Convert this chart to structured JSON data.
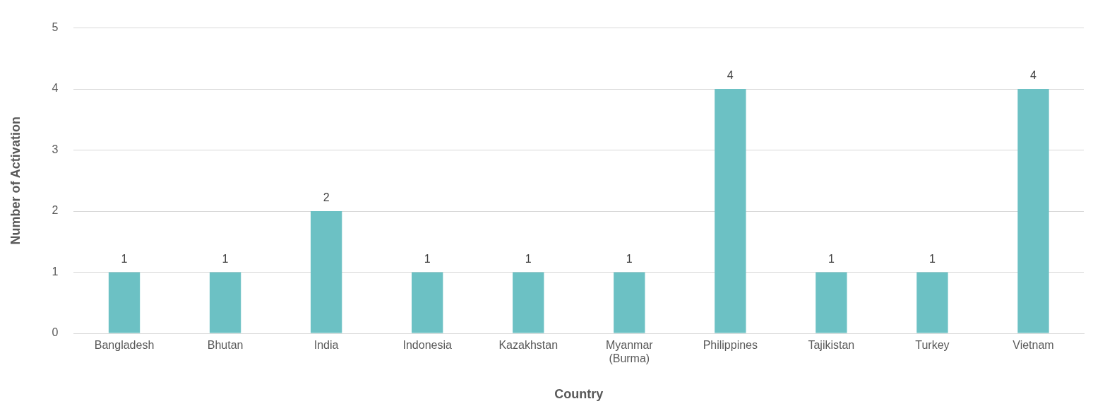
{
  "chart_data": {
    "type": "bar",
    "xlabel": "Country",
    "ylabel": "Number of Activation",
    "categories": [
      "Bangladesh",
      "Bhutan",
      "India",
      "Indonesia",
      "Kazakhstan",
      "Myanmar (Burma)",
      "Philippines",
      "Tajikistan",
      "Turkey",
      "Vietnam"
    ],
    "values": [
      1,
      1,
      2,
      1,
      1,
      1,
      4,
      1,
      1,
      4
    ],
    "color": "#6cc1c4",
    "ylim": [
      0,
      5
    ],
    "yticks": [
      0,
      1,
      2,
      3,
      4,
      5
    ],
    "grid": "y",
    "data_labels": true,
    "legend": false
  }
}
